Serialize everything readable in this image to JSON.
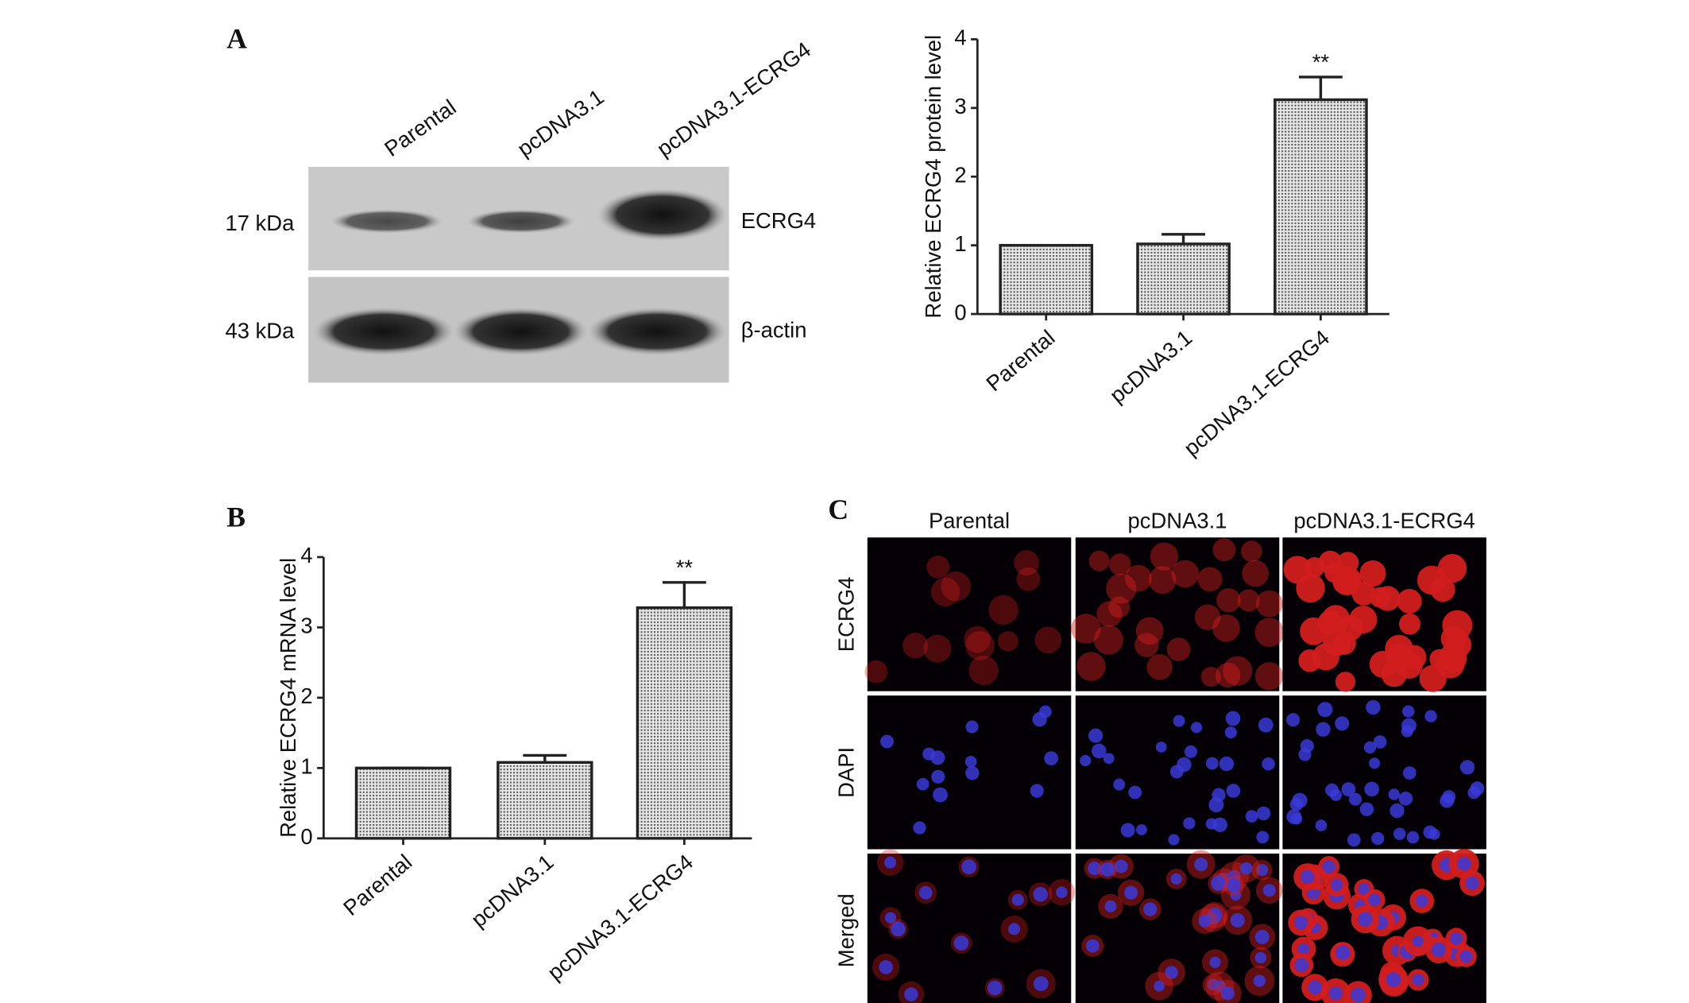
{
  "chart_data": [
    {
      "type": "bar",
      "panel": "A",
      "y_label": "Relative ECRG4 protein level",
      "categories": [
        "Parental",
        "pcDNA3.1",
        "pcDNA3.1-ECRG4"
      ],
      "values": [
        1.0,
        1.02,
        3.12
      ],
      "error": [
        0,
        0.14,
        0.33
      ],
      "annotations": [
        {
          "category": "pcDNA3.1-ECRG4",
          "text": "**"
        }
      ],
      "ylim": [
        0,
        4
      ],
      "yticks": [
        0,
        1,
        2,
        3,
        4
      ],
      "color": "#b8b8b8"
    },
    {
      "type": "bar",
      "panel": "B",
      "y_label": "Relative ECRG4 mRNA level",
      "categories": [
        "Parental",
        "pcDNA3.1",
        "pcDNA3.1-ECRG4"
      ],
      "values": [
        1.0,
        1.08,
        3.28
      ],
      "error": [
        0,
        0.1,
        0.36
      ],
      "annotations": [
        {
          "category": "pcDNA3.1-ECRG4",
          "text": "**"
        }
      ],
      "ylim": [
        0,
        4
      ],
      "yticks": [
        0,
        1,
        2,
        3,
        4
      ],
      "color": "#b8b8b8"
    }
  ],
  "blot": {
    "panel": "A",
    "lanes": [
      "Parental",
      "pcDNA3.1",
      "pcDNA3.1-ECRG4"
    ],
    "rows": [
      {
        "size": "17 kDa",
        "protein": "ECRG4"
      },
      {
        "size": "43 kDa",
        "protein": "β-actin"
      }
    ]
  },
  "microscopy": {
    "panel": "C",
    "columns": [
      "Parental",
      "pcDNA3.1",
      "pcDNA3.1-ECRG4"
    ],
    "rows": [
      "ECRG4",
      "DAPI",
      "Merged"
    ]
  }
}
